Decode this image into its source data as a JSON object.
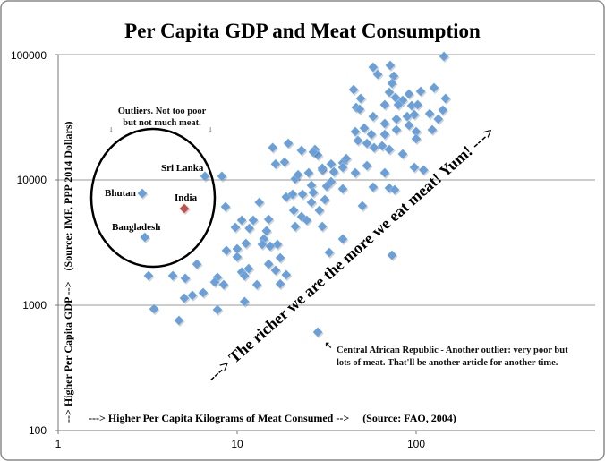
{
  "chart_data": {
    "type": "scatter",
    "title": "Per Capita GDP and Meat Consumption",
    "xlabel": "---> Higher Per Capita Kilograms of Meat Consumed -->     (Source: FAO, 2004)",
    "ylabel": "--> Higher Per Capita GDP -->    (Source: IMF, PPP 2014 Dollars)",
    "x_scale": "log",
    "y_scale": "log",
    "xlim": [
      1,
      1000
    ],
    "ylim": [
      100,
      100000
    ],
    "x_ticks": [
      "1",
      "10",
      "100"
    ],
    "y_ticks": [
      "100000",
      "10000",
      "1000",
      "100"
    ],
    "grid": "horizontal",
    "colors": {
      "points": "#6a9fd8",
      "highlight": "#c0504d"
    },
    "labeled_points": [
      {
        "label": "Bhutan",
        "x": 2.95,
        "y": 7810
      },
      {
        "label": "India",
        "x": 5.07,
        "y": 5910,
        "highlight": true
      },
      {
        "label": "Bangladesh",
        "x": 3.05,
        "y": 3490
      },
      {
        "label": "Sri Lanka",
        "x": 6.61,
        "y": 10700
      },
      {
        "label": "",
        "x": 28.2,
        "y": 611
      }
    ],
    "points": [
      [
        8.22,
        10700
      ],
      [
        8.61,
        6110
      ],
      [
        13.3,
        6630
      ],
      [
        10.6,
        4770
      ],
      [
        9.77,
        4180
      ],
      [
        11.7,
        4110
      ],
      [
        12.3,
        4770
      ],
      [
        8.71,
        2730
      ],
      [
        10,
        2820
      ],
      [
        10,
        2430
      ],
      [
        11.2,
        3110
      ],
      [
        5.96,
        2130
      ],
      [
        4.37,
        1720
      ],
      [
        5.13,
        1640
      ],
      [
        7.76,
        1670
      ],
      [
        7.5,
        1530
      ],
      [
        8.41,
        1460
      ],
      [
        10.6,
        1840
      ],
      [
        11.6,
        1960
      ],
      [
        11.0,
        1720
      ],
      [
        12.9,
        1460
      ],
      [
        5.07,
        1140
      ],
      [
        5.62,
        1200
      ],
      [
        6.46,
        1260
      ],
      [
        11.0,
        1070
      ],
      [
        3.43,
        935
      ],
      [
        7.76,
        921
      ],
      [
        3.2,
        1720
      ],
      [
        4.73,
        756
      ],
      [
        15.8,
        18100
      ],
      [
        19.3,
        19600
      ],
      [
        22.9,
        17200
      ],
      [
        27.2,
        17500
      ],
      [
        28.2,
        15800
      ],
      [
        16.4,
        13400
      ],
      [
        18.4,
        13900
      ],
      [
        21.1,
        10200
      ],
      [
        21.9,
        11000
      ],
      [
        25.1,
        11400
      ],
      [
        29.9,
        12000
      ],
      [
        33.5,
        13400
      ],
      [
        34.7,
        11600
      ],
      [
        38.9,
        13700
      ],
      [
        40.7,
        14800
      ],
      [
        45.7,
        11400
      ],
      [
        53.1,
        13000
      ],
      [
        66.8,
        11400
      ],
      [
        97.7,
        12600
      ],
      [
        110,
        12000
      ],
      [
        18.8,
        7310
      ],
      [
        20.4,
        7690
      ],
      [
        23.2,
        7690
      ],
      [
        26.0,
        9060
      ],
      [
        26.6,
        7940
      ],
      [
        31.6,
        8910
      ],
      [
        33.5,
        9680
      ],
      [
        38.9,
        8490
      ],
      [
        57.5,
        8770
      ],
      [
        70.8,
        8630
      ],
      [
        75.9,
        8350
      ],
      [
        26.0,
        6630
      ],
      [
        28.8,
        5720
      ],
      [
        30.9,
        6970
      ],
      [
        20.7,
        5720
      ],
      [
        22.9,
        5090
      ],
      [
        24.5,
        4770
      ],
      [
        21.1,
        4250
      ],
      [
        29.9,
        4250
      ],
      [
        50.1,
        6210
      ],
      [
        38.9,
        3380
      ],
      [
        32.7,
        2640
      ],
      [
        73.3,
        2510
      ],
      [
        15.0,
        4850
      ],
      [
        14.6,
        3920
      ],
      [
        14.1,
        3380
      ],
      [
        13.8,
        3060
      ],
      [
        16.8,
        3060
      ],
      [
        15.3,
        2960
      ],
      [
        17.4,
        2390
      ],
      [
        15.0,
        2130
      ],
      [
        16.4,
        1900
      ],
      [
        18.8,
        1750
      ],
      [
        17.4,
        1480
      ],
      [
        143,
        96800
      ],
      [
        57.5,
        79400
      ],
      [
        71.6,
        82100
      ],
      [
        61.0,
        69600
      ],
      [
        75.0,
        67400
      ],
      [
        44.7,
        52600
      ],
      [
        73.3,
        59100
      ],
      [
        70.8,
        50100
      ],
      [
        76.7,
        45400
      ],
      [
        84.1,
        43200
      ],
      [
        91.2,
        48500
      ],
      [
        106,
        50900
      ],
      [
        126,
        54400
      ],
      [
        146,
        44700
      ],
      [
        49.0,
        44700
      ],
      [
        46.2,
        37900
      ],
      [
        48.4,
        36700
      ],
      [
        66.8,
        39800
      ],
      [
        79.4,
        39800
      ],
      [
        94.4,
        39200
      ],
      [
        102,
        39800
      ],
      [
        57.5,
        32100
      ],
      [
        66.8,
        28200
      ],
      [
        77.6,
        30600
      ],
      [
        89.1,
        32100
      ],
      [
        97.7,
        33200
      ],
      [
        119,
        33800
      ],
      [
        141,
        36100
      ],
      [
        133,
        30600
      ],
      [
        123,
        25100
      ],
      [
        45.7,
        24300
      ],
      [
        51.3,
        25900
      ],
      [
        56.2,
        23100
      ],
      [
        66.8,
        23100
      ],
      [
        77.6,
        25100
      ],
      [
        91.2,
        27300
      ],
      [
        100,
        24300
      ],
      [
        100,
        21300
      ],
      [
        47.3,
        20600
      ],
      [
        53.1,
        19600
      ],
      [
        58.2,
        18100
      ],
      [
        64.6,
        18700
      ],
      [
        70.8,
        17500
      ],
      [
        84.1,
        16100
      ],
      [
        26.6,
        16700
      ],
      [
        38.9,
        12600
      ],
      [
        29.9,
        12400
      ]
    ],
    "annotations": {
      "outliers_line1": "Outliers. Not too poor",
      "outliers_line2": "but not much meat.",
      "outliers_arrow": "↓",
      "trend": "---> The richer we are the more we eat meat! Yum! --->",
      "car_arrow": "↖",
      "car_line1": "Central African Republic - Another outlier: very poor but",
      "car_line2": "lots of meat. That'll be another article for another time."
    }
  }
}
